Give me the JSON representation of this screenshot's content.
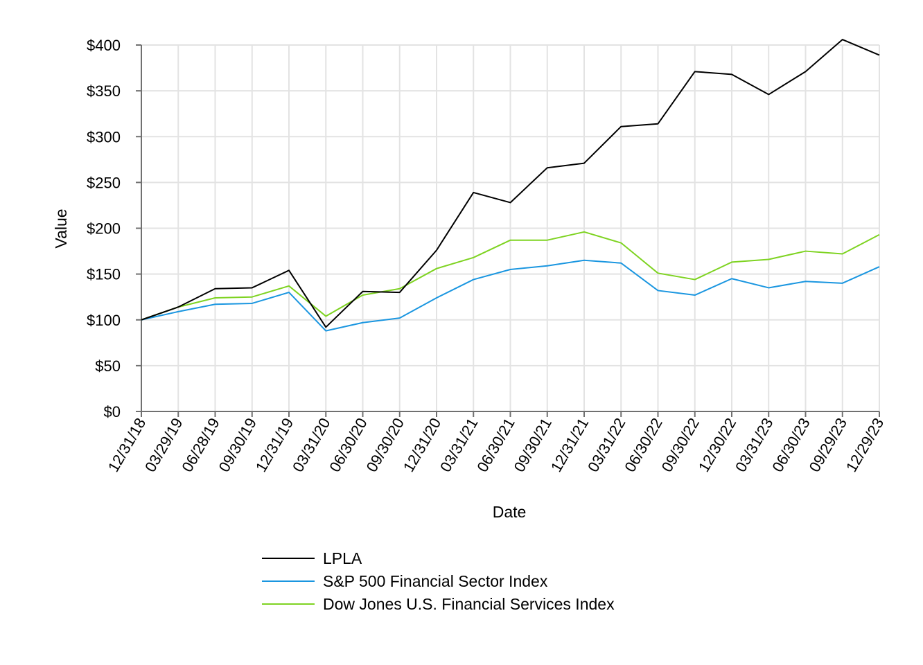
{
  "chart_data": {
    "type": "line",
    "title": "",
    "xlabel": "Date",
    "ylabel": "Value",
    "ylim": [
      0,
      400
    ],
    "ytick_step": 50,
    "yticks": [
      "$0",
      "$50",
      "$100",
      "$150",
      "$200",
      "$250",
      "$300",
      "$350",
      "$400"
    ],
    "grid": true,
    "legend_position": "bottom-center",
    "categories": [
      "12/31/18",
      "03/29/19",
      "06/28/19",
      "09/30/19",
      "12/31/19",
      "03/31/20",
      "06/30/20",
      "09/30/20",
      "12/31/20",
      "03/31/21",
      "06/30/21",
      "09/30/21",
      "12/31/21",
      "03/31/22",
      "06/30/22",
      "09/30/22",
      "12/30/22",
      "03/31/23",
      "06/30/23",
      "09/29/23",
      "12/29/23"
    ],
    "series": [
      {
        "name": "LPLA",
        "color": "#000000",
        "values": [
          100,
          114,
          134,
          135,
          154,
          92,
          131,
          130,
          176,
          239,
          228,
          266,
          271,
          311,
          314,
          371,
          368,
          346,
          371,
          406,
          389
        ]
      },
      {
        "name": "S&P 500 Financial Sector Index",
        "color": "#1a96e0",
        "values": [
          100,
          109,
          117,
          118,
          130,
          88,
          97,
          102,
          124,
          144,
          155,
          159,
          165,
          162,
          132,
          127,
          145,
          135,
          142,
          140,
          158
        ]
      },
      {
        "name": "Dow Jones U.S. Financial Services Index",
        "color": "#7ed321",
        "values": [
          100,
          114,
          124,
          125,
          137,
          104,
          127,
          134,
          156,
          168,
          187,
          187,
          196,
          184,
          151,
          144,
          163,
          166,
          175,
          172,
          193
        ]
      }
    ]
  }
}
